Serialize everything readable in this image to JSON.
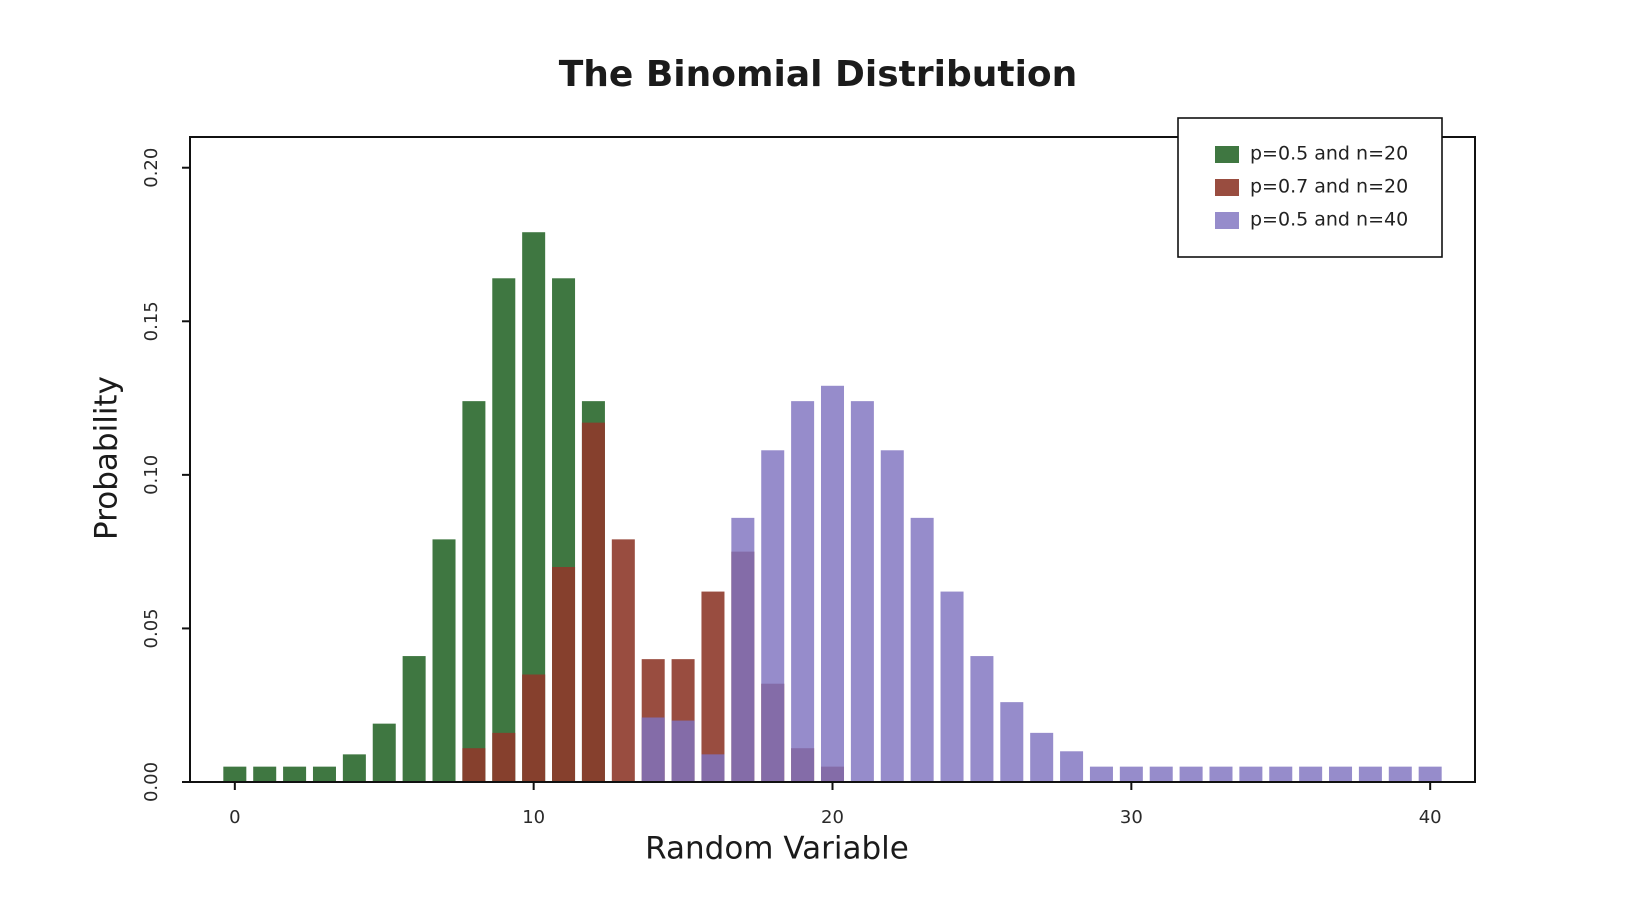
{
  "chart_data": {
    "type": "bar",
    "title": "The Binomial Distribution",
    "xlabel": "Random Variable",
    "ylabel": "Probability",
    "xlim": [
      -1.5,
      41.5
    ],
    "ylim": [
      0,
      0.21
    ],
    "xticks": [
      0,
      10,
      20,
      30,
      40
    ],
    "xtick_labels": [
      "0",
      "10",
      "20",
      "30",
      "40"
    ],
    "yticks": [
      0.0,
      0.05,
      0.1,
      0.15,
      0.2
    ],
    "ytick_labels": [
      "0.00",
      "0.05",
      "0.10",
      "0.15",
      "0.20"
    ],
    "grid": false,
    "legend_position": "top-right",
    "series": [
      {
        "name": "p=0.5 and n=20",
        "color": "#2f6b31",
        "opacity": 0.92,
        "x": [
          0,
          1,
          2,
          3,
          4,
          5,
          6,
          7,
          8,
          9,
          10,
          11,
          12
        ],
        "values": [
          0.005,
          0.005,
          0.005,
          0.005,
          0.009,
          0.019,
          0.041,
          0.079,
          0.124,
          0.164,
          0.179,
          0.164,
          0.124
        ]
      },
      {
        "name": "p=0.7 and n=20",
        "color": "#8e3a2b",
        "opacity": 0.9,
        "x": [
          8,
          9,
          10,
          11,
          12,
          13,
          14,
          15,
          16,
          17,
          18,
          19,
          20
        ],
        "values": [
          0.011,
          0.016,
          0.035,
          0.07,
          0.117,
          0.079,
          0.04,
          0.04,
          0.062,
          0.075,
          0.032,
          0.011,
          0.005
        ]
      },
      {
        "name": "p=0.5 and n=40",
        "color": "#7f73bf",
        "opacity": 0.82,
        "x": [
          14,
          15,
          16,
          17,
          18,
          19,
          20,
          21,
          22,
          23,
          24,
          25,
          26,
          27,
          28,
          29,
          30,
          31,
          32,
          33,
          34,
          35,
          36,
          37,
          38,
          39,
          40
        ],
        "values": [
          0.021,
          0.02,
          0.009,
          0.086,
          0.108,
          0.124,
          0.129,
          0.124,
          0.108,
          0.086,
          0.062,
          0.041,
          0.026,
          0.016,
          0.01,
          0.005,
          0.005,
          0.005,
          0.005,
          0.005,
          0.005,
          0.005,
          0.005,
          0.005,
          0.005,
          0.005,
          0.005
        ]
      }
    ]
  }
}
